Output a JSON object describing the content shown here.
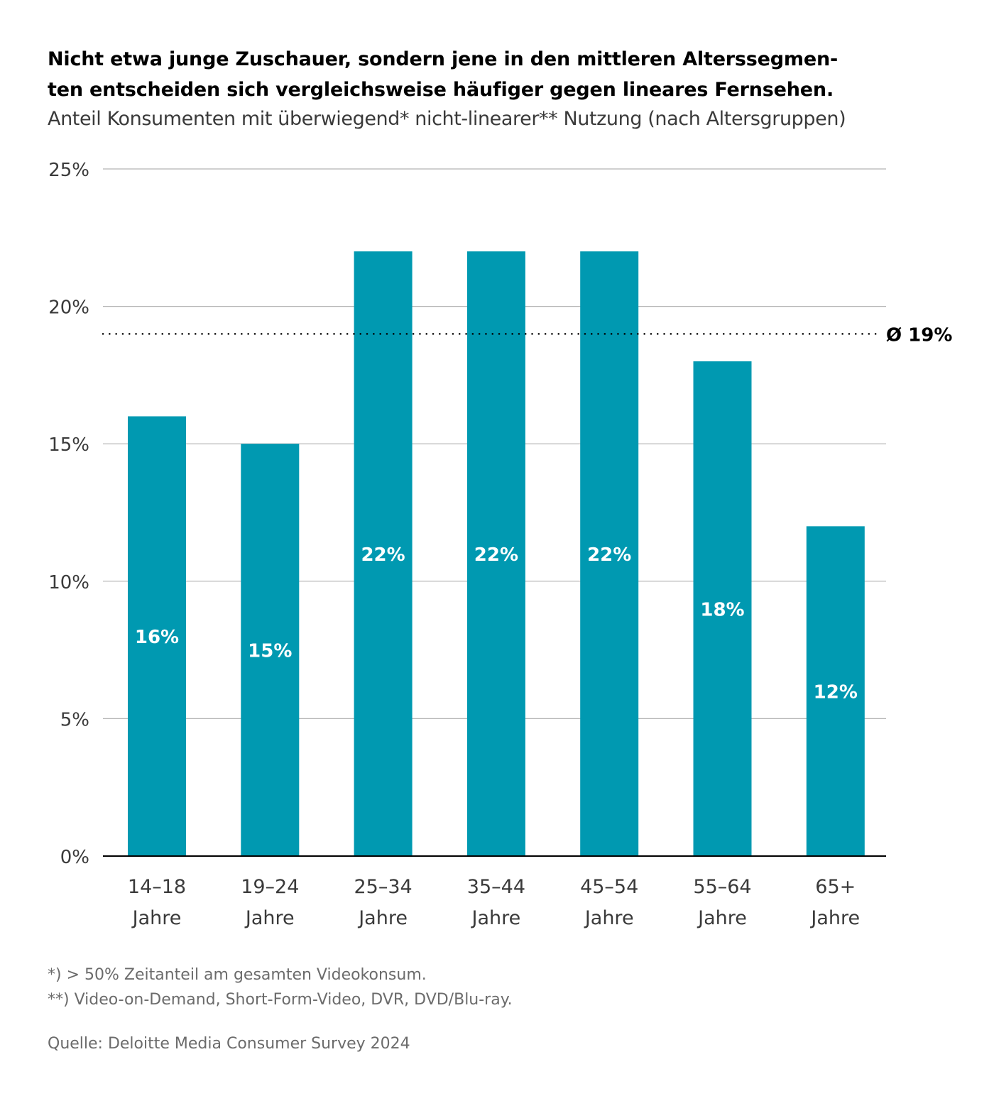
{
  "title_line1": "Nicht etwa junge Zuschauer, sondern jene in den mittleren Alterssegmen-",
  "title_line2": "ten entscheiden sich vergleichsweise häufiger gegen lineares Fernsehen.",
  "subtitle": "Anteil Konsumenten mit überwiegend* nicht-linearer** Nutzung (nach Altersgruppen)",
  "chart_data": {
    "type": "bar",
    "categories": [
      [
        "14–18",
        "Jahre"
      ],
      [
        "19–24",
        "Jahre"
      ],
      [
        "25–34",
        "Jahre"
      ],
      [
        "35–44",
        "Jahre"
      ],
      [
        "45–54",
        "Jahre"
      ],
      [
        "55–64",
        "Jahre"
      ],
      [
        "65+",
        "Jahre"
      ]
    ],
    "values": [
      16,
      15,
      22,
      22,
      22,
      18,
      12
    ],
    "data_labels": [
      "16%",
      "15%",
      "22%",
      "22%",
      "22%",
      "18%",
      "12%"
    ],
    "yticks": [
      0,
      5,
      10,
      15,
      20,
      25
    ],
    "ytick_labels": [
      "0%",
      "5%",
      "10%",
      "15%",
      "20%",
      "25%"
    ],
    "ylim": [
      0,
      25
    ],
    "grid": true,
    "reference_line": {
      "value": 19,
      "label": "Ø 19%",
      "style": "dotted"
    },
    "colors": {
      "bar": "#0099b1",
      "grid": "#b3b3b3",
      "axis": "#000000"
    }
  },
  "footnotes": [
    "*) > 50% Zeitanteil am gesamten Videokonsum.",
    "**) Video-on-Demand, Short-Form-Video, DVR, DVD/Blu-ray."
  ],
  "source": "Quelle: Deloitte Media Consumer Survey 2024"
}
